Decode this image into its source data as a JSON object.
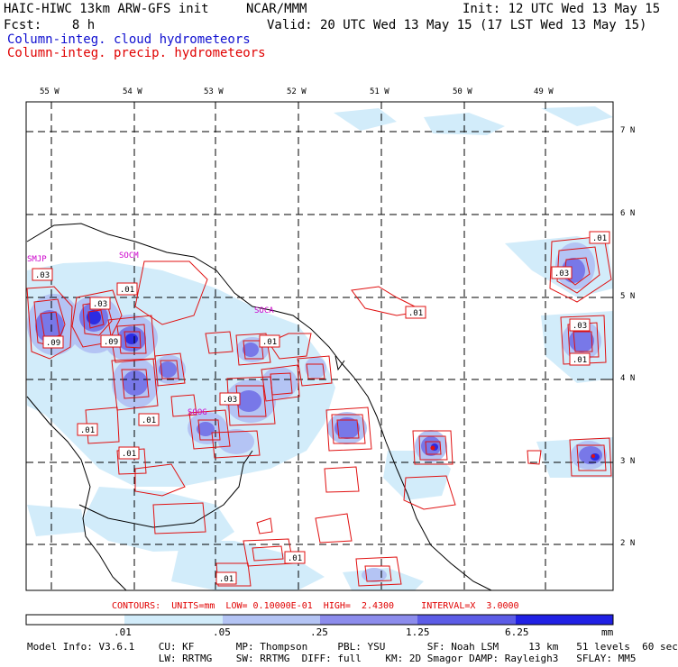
{
  "header": {
    "title": "HAIC-HIWC 13km ARW-GFS init",
    "org": "NCAR/MMM",
    "init": "Init: 12 UTC Wed 13 May 15",
    "fcst": "Fcst:    8 h",
    "valid": "Valid: 20 UTC Wed 13 May 15 (17 LST Wed 13 May 15)",
    "legend_cloud": "Column-integ. cloud hydrometeors",
    "legend_precip": "Column-integ. precip. hydrometeors"
  },
  "map": {
    "lon_labels": [
      "55 W",
      "54 W",
      "53 W",
      "52 W",
      "51 W",
      "50 W",
      "49 W"
    ],
    "lat_labels": [
      "7 N",
      "6 N",
      "5 N",
      "4 N",
      "3 N",
      "2 N"
    ],
    "stations": [
      "SMJP",
      "SOCM",
      "SOCA",
      "SOOG"
    ],
    "contour_labels": [
      ".01",
      ".03",
      ".01",
      ".03",
      ".09",
      ".09",
      ".01",
      ".01",
      ".03",
      ".01",
      ".01",
      ".01",
      ".03",
      ".03",
      ".01",
      ".01",
      ".01"
    ]
  },
  "contours_info": "CONTOURS:  UNITS=mm  LOW= 0.10000E-01  HIGH=  2.4300     INTERVAL=X  3.0000",
  "colorbar": {
    "labels": [
      ".01",
      ".05",
      ".25",
      "1.25",
      "6.25",
      "mm"
    ],
    "colors": [
      "#ffffff",
      "#d2ecfa",
      "#b4c4f4",
      "#9090ec",
      "#6060e6",
      "#3030e4",
      "#1010e0"
    ]
  },
  "model_info": {
    "line1": "Model Info: V3.6.1    CU: KF       MP: Thompson     PBL: YSU       SF: Noah LSM     13 km   51 levels  60 sec",
    "line2": "                      LW: RRTMG    SW: RRTMG  DIFF: full    KM: 2D Smagor DAMP: Rayleigh3   SFLAY: MM5"
  }
}
